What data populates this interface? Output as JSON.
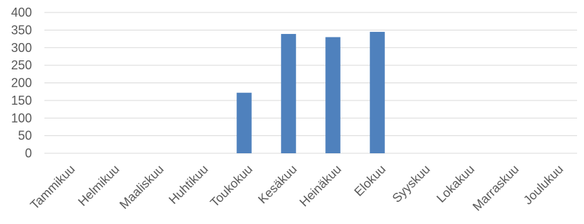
{
  "chart_data": {
    "type": "bar",
    "title": "",
    "xlabel": "",
    "ylabel": "",
    "categories": [
      "Tammikuu",
      "Helmikuu",
      "Maaliskuu",
      "Huhtikuu",
      "Toukokuu",
      "Kesäkuu",
      "Heinäkuu",
      "Elokuu",
      "Syyskuu",
      "Lokakuu",
      "Marraskuu",
      "Joulukuu"
    ],
    "values": [
      0,
      0,
      0,
      0,
      172,
      339,
      330,
      345,
      0,
      0,
      0,
      0
    ],
    "ylim": [
      0,
      400
    ],
    "yticks": [
      0,
      50,
      100,
      150,
      200,
      250,
      300,
      350,
      400
    ],
    "grid": "horizontal",
    "legend": "none",
    "bar_color": "#4f81bd"
  }
}
